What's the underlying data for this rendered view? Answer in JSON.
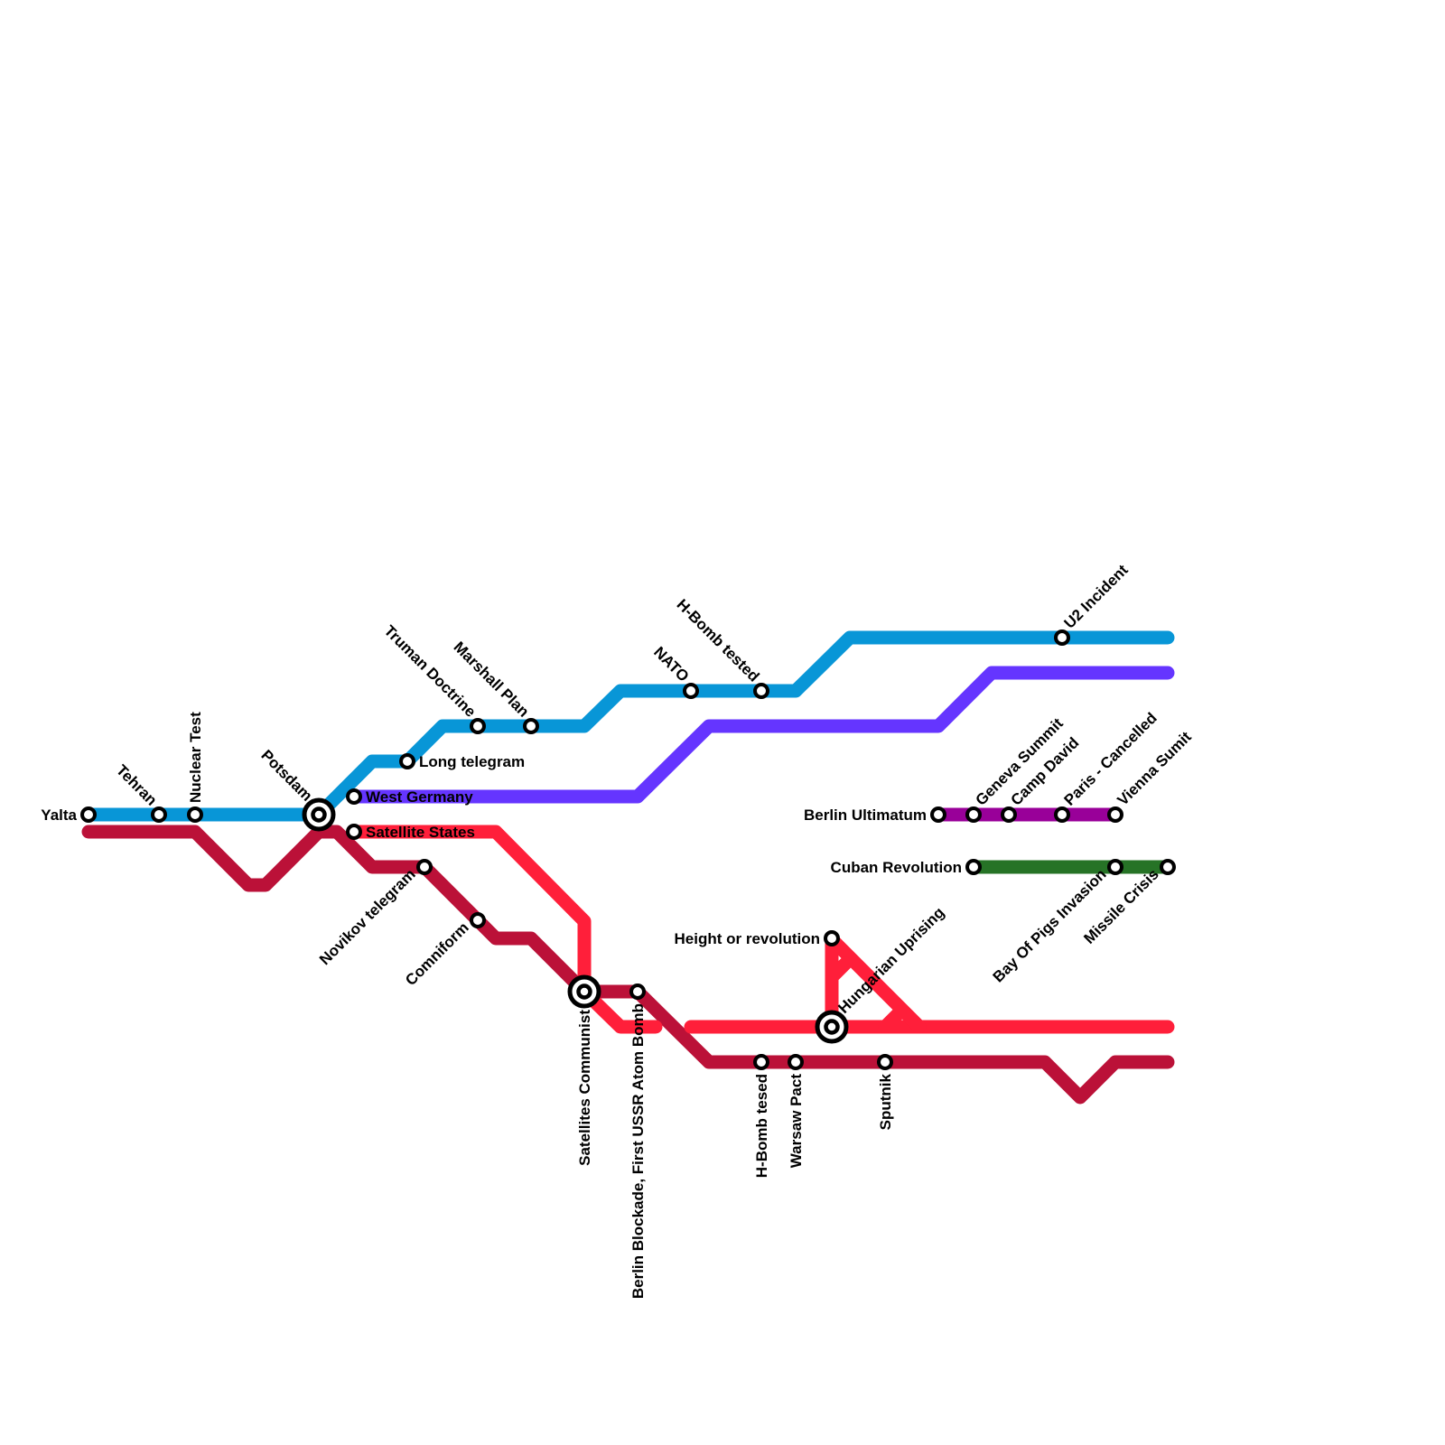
{
  "lines": [
    {
      "id": "blue",
      "color": "#0896d7"
    },
    {
      "id": "indigo",
      "color": "#6535ff"
    },
    {
      "id": "red",
      "color": "#ff1f3a"
    },
    {
      "id": "crimson",
      "color": "#bb1138"
    },
    {
      "id": "magenta",
      "color": "#990099"
    },
    {
      "id": "green",
      "color": "#267326"
    }
  ],
  "stations": [
    {
      "label": "Yalta"
    },
    {
      "label": "Tehran"
    },
    {
      "label": "Nuclear Test"
    },
    {
      "label": "Potsdam",
      "interchange": true
    },
    {
      "label": "West Germany"
    },
    {
      "label": "Satellite States"
    },
    {
      "label": "Long telegram"
    },
    {
      "label": "Truman Doctrine"
    },
    {
      "label": "Marshall Plan"
    },
    {
      "label": "NATO"
    },
    {
      "label": "H-Bomb tested"
    },
    {
      "label": "U2 Incident"
    },
    {
      "label": "Novikov telegram"
    },
    {
      "label": "Comniform"
    },
    {
      "label": "Satellites Communist",
      "interchange": true
    },
    {
      "label": "Berlin Blockade, First USSR Atom Bomb"
    },
    {
      "label": "H-Bomb tesed"
    },
    {
      "label": "Warsaw Pact"
    },
    {
      "label": "Sputnik"
    },
    {
      "label": "Height or revolution"
    },
    {
      "label": "Hungarian Uprising",
      "interchange": true
    },
    {
      "label": "Berlin Ultimatum"
    },
    {
      "label": "Geneva Summit"
    },
    {
      "label": "Camp David"
    },
    {
      "label": "Paris - Cancelled"
    },
    {
      "label": "Vienna Sumit"
    },
    {
      "label": "Cuban Revolution"
    },
    {
      "label": "Bay Of Pigs Invasion"
    },
    {
      "label": "Missile Crisis"
    }
  ]
}
